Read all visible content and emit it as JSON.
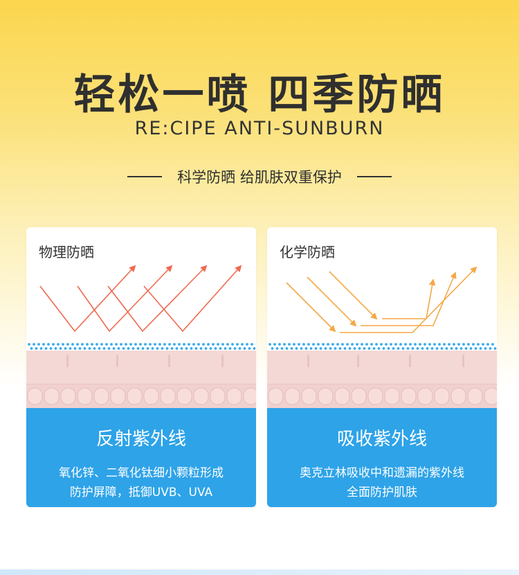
{
  "headline": "轻松一喷 四季防晒",
  "subheadline": "RE:CIPE ANTI-SUNBURN",
  "tagline": "科学防晒 给肌肤双重保护",
  "colors": {
    "headline": "#2f2f2f",
    "physical_rays": "#ef6a4f",
    "chemical_rays": "#f5a745",
    "card_bottom": "#2ea3e8",
    "dots": "#3aaae8",
    "skin": "#f4d8d5"
  },
  "cards": [
    {
      "title": "物理防晒",
      "result": "反射紫外线",
      "desc_line1": "氧化锌、二氧化钛细小颗粒形成",
      "desc_line2": "防护屏障，抵御UVB、UVA"
    },
    {
      "title": "化学防晒",
      "result": "吸收紫外线",
      "desc_line1": "奥克立林吸收中和遗漏的紫外线",
      "desc_line2": "全面防护肌肤"
    }
  ]
}
